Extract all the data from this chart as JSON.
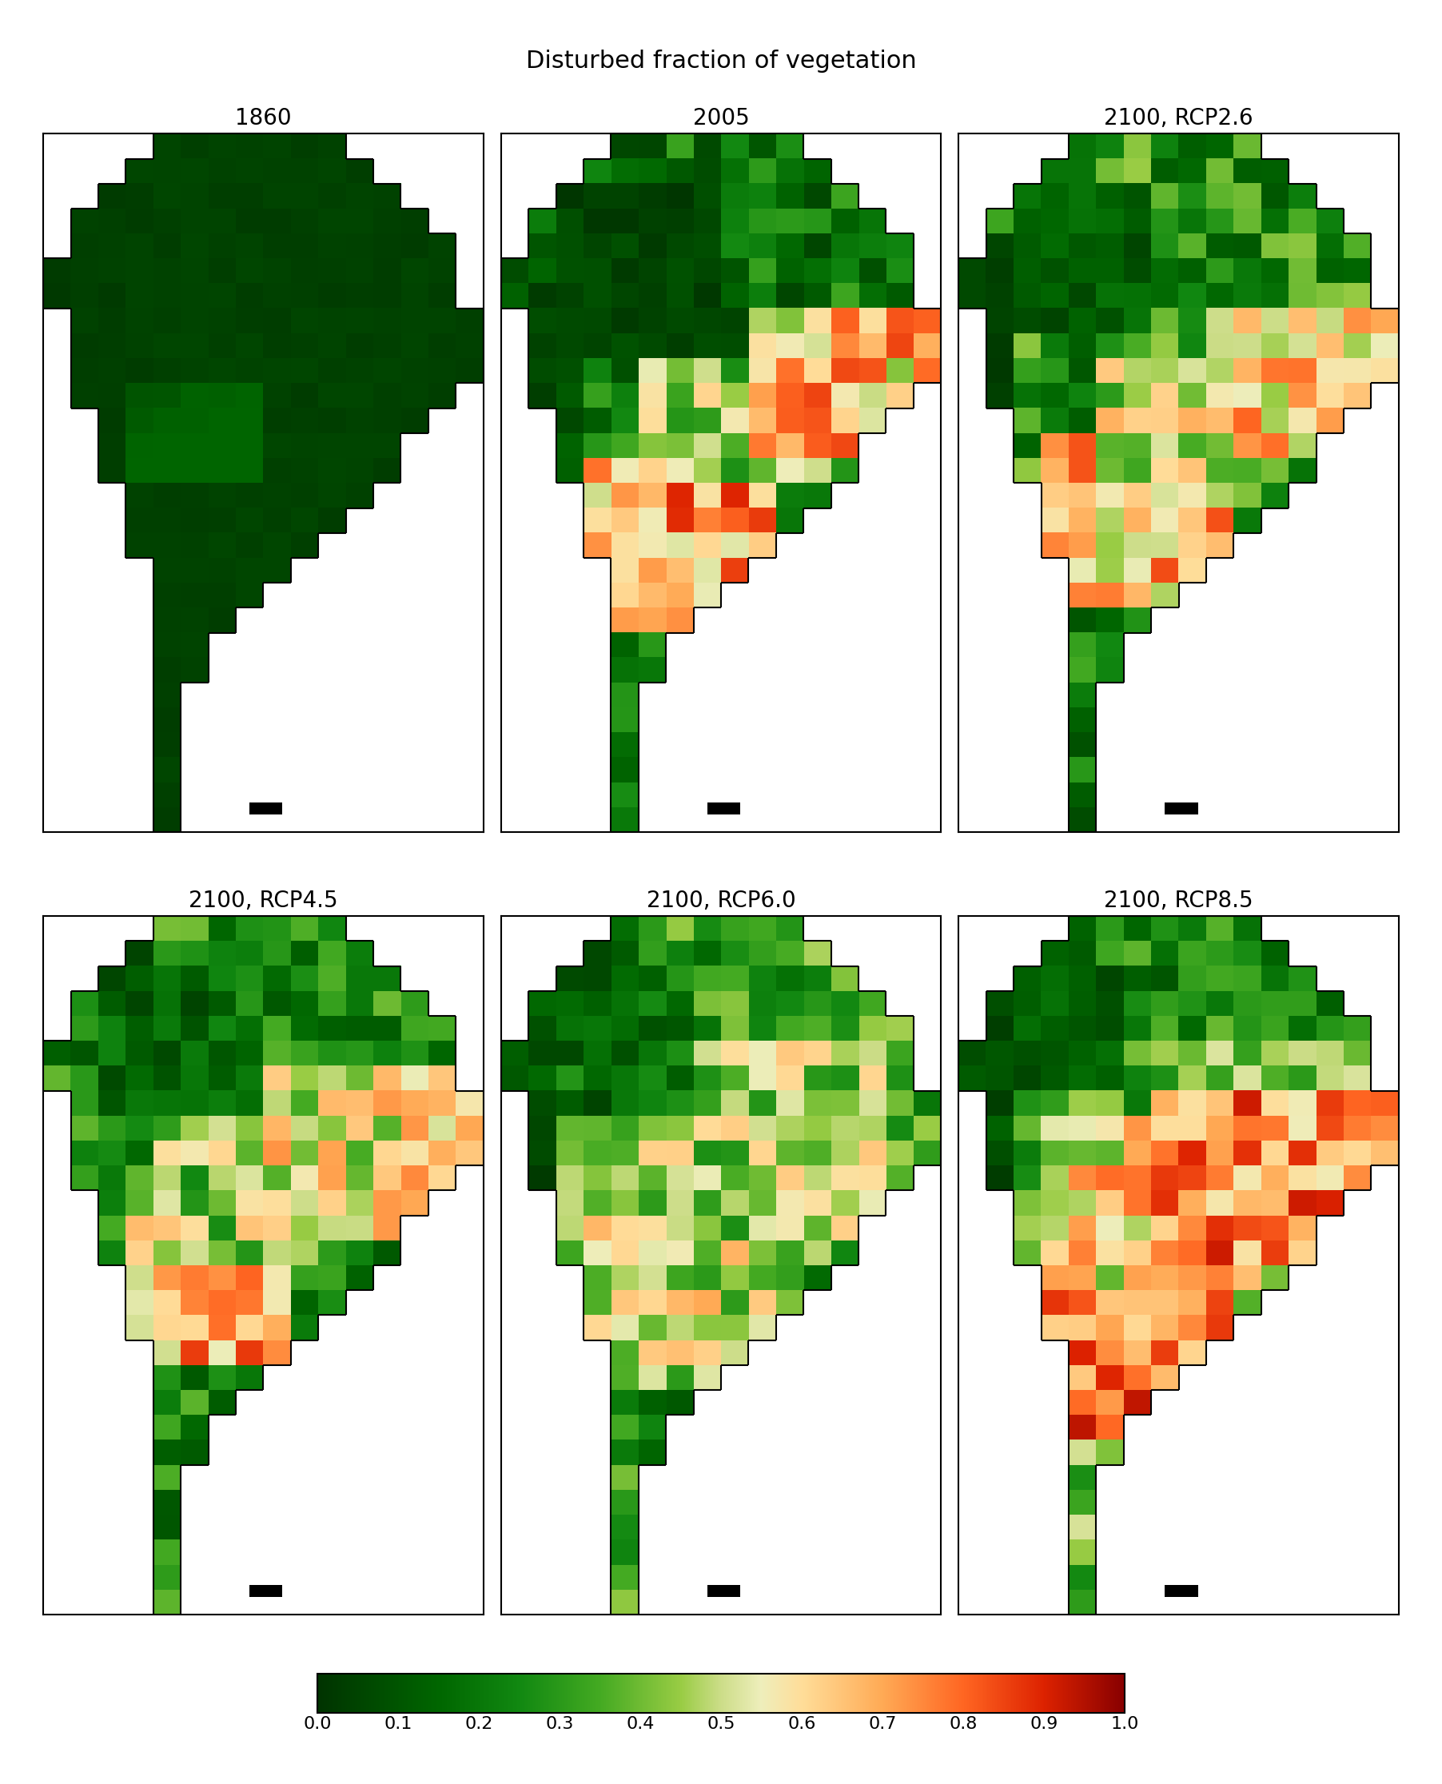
{
  "title": "Disturbed fraction of vegetation",
  "panel_titles": [
    "1860",
    "2005",
    "2100, RCP2.6",
    "2100, RCP4.5",
    "2100, RCP6.0",
    "2100, RCP8.5"
  ],
  "colorbar_ticks": [
    0.0,
    0.1,
    0.2,
    0.3,
    0.4,
    0.5,
    0.6,
    0.7,
    0.8,
    0.9,
    1.0
  ],
  "vmin": 0.0,
  "vmax": 1.0,
  "background_color": "#ffffff",
  "title_fontsize": 22,
  "panel_title_fontsize": 20,
  "colorbar_fontsize": 16,
  "colormap_colors": [
    [
      0.0,
      "#003300"
    ],
    [
      0.05,
      "#004400"
    ],
    [
      0.15,
      "#006600"
    ],
    [
      0.25,
      "#118811"
    ],
    [
      0.35,
      "#44aa22"
    ],
    [
      0.45,
      "#99cc44"
    ],
    [
      0.5,
      "#ccdd88"
    ],
    [
      0.55,
      "#eeeebb"
    ],
    [
      0.6,
      "#ffdd99"
    ],
    [
      0.7,
      "#ffaa55"
    ],
    [
      0.8,
      "#ff6622"
    ],
    [
      0.9,
      "#dd2200"
    ],
    [
      1.0,
      "#880000"
    ]
  ]
}
